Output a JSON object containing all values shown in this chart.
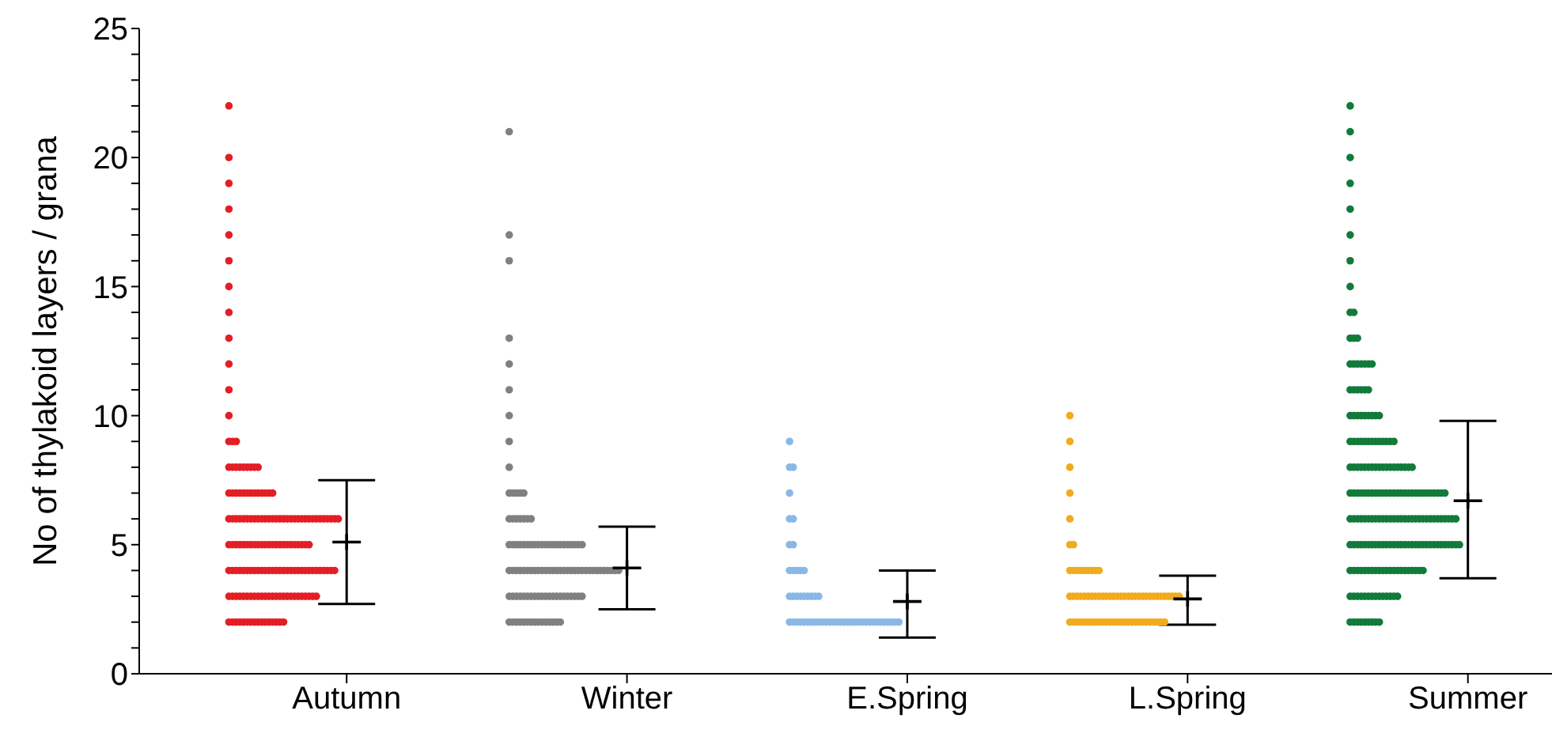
{
  "chart_data": {
    "type": "scatter",
    "ylabel": "No of thylakoid layers / grana",
    "categories": [
      "Autumn",
      "Winter",
      "E.Spring",
      "L.Spring",
      "Summer"
    ],
    "ylim": [
      0,
      25
    ],
    "yticks": [
      0,
      {
        "value": 1,
        "label": null
      },
      {
        "value": 2,
        "label": null
      },
      {
        "value": 3,
        "label": null
      },
      {
        "value": 4,
        "label": null
      },
      5,
      {
        "value": 6,
        "label": null
      },
      {
        "value": 7,
        "label": null
      },
      {
        "value": 8,
        "label": null
      },
      {
        "value": 9,
        "label": null
      },
      10,
      {
        "value": 11,
        "label": null
      },
      {
        "value": 12,
        "label": null
      },
      {
        "value": 13,
        "label": null
      },
      {
        "value": 14,
        "label": null
      },
      15,
      {
        "value": 16,
        "label": null
      },
      {
        "value": 17,
        "label": null
      },
      {
        "value": 18,
        "label": null
      },
      {
        "value": 19,
        "label": null
      },
      20,
      {
        "value": 21,
        "label": null
      },
      {
        "value": 22,
        "label": null
      },
      {
        "value": 23,
        "label": null
      },
      {
        "value": 24,
        "label": null
      },
      25
    ],
    "grid": false,
    "marker": "circle",
    "series": [
      {
        "color": "#e31e24",
        "x": [
          "Autumn",
          "Autumn",
          "Autumn",
          "Autumn",
          "Autumn",
          "Autumn",
          "Autumn",
          "Autumn",
          "Autumn",
          "Autumn",
          "Autumn",
          "Autumn",
          "Autumn",
          "Autumn",
          "Autumn",
          "Autumn",
          "Autumn",
          "Autumn",
          "Autumn",
          "Autumn",
          "Autumn",
          "Autumn",
          "Autumn",
          "Autumn",
          "Autumn",
          "Autumn",
          "Autumn",
          "Autumn",
          "Autumn",
          "Autumn",
          "Autumn",
          "Autumn",
          "Autumn",
          "Autumn",
          "Autumn",
          "Autumn",
          "Autumn",
          "Autumn",
          "Autumn",
          "Autumn",
          "Autumn",
          "Autumn",
          "Autumn",
          "Autumn",
          "Autumn",
          "Autumn",
          "Autumn",
          "Autumn",
          "Autumn",
          "Autumn",
          "Autumn",
          "Autumn",
          "Autumn",
          "Autumn",
          "Autumn",
          "Autumn",
          "Autumn",
          "Autumn",
          "Autumn",
          "Autumn",
          "Autumn",
          "Autumn",
          "Autumn",
          "Autumn",
          "Autumn",
          "Autumn",
          "Autumn",
          "Autumn",
          "Autumn",
          "Autumn",
          "Autumn",
          "Autumn",
          "Autumn",
          "Autumn",
          "Autumn",
          "Autumn",
          "Autumn",
          "Autumn",
          "Autumn",
          "Autumn",
          "Autumn",
          "Autumn",
          "Autumn",
          "Autumn",
          "Autumn",
          "Autumn",
          "Autumn",
          "Autumn",
          "Autumn",
          "Autumn",
          "Autumn",
          "Autumn",
          "Autumn",
          "Autumn",
          "Autumn",
          "Autumn",
          "Autumn",
          "Autumn",
          "Autumn",
          "Autumn",
          "Autumn",
          "Autumn",
          "Autumn",
          "Autumn",
          "Autumn",
          "Autumn",
          "Autumn",
          "Autumn",
          "Autumn",
          "Autumn",
          "Autumn",
          "Autumn",
          "Autumn",
          "Autumn",
          "Autumn",
          "Autumn",
          "Autumn",
          "Autumn",
          "Autumn",
          "Autumn",
          "Autumn",
          "Autumn",
          "Autumn",
          "Autumn",
          "Autumn",
          "Autumn",
          "Autumn",
          "Autumn",
          "Autumn",
          "Autumn",
          "Autumn",
          "Autumn",
          "Autumn",
          "Autumn",
          "Autumn",
          "Autumn",
          "Autumn",
          "Autumn",
          "Autumn",
          "Autumn",
          "Autumn",
          "Autumn",
          "Autumn",
          "Autumn",
          "Autumn",
          "Autumn",
          "Autumn",
          "Autumn",
          "Autumn",
          "Autumn",
          "Autumn",
          "Autumn",
          "Autumn",
          "Autumn",
          "Autumn",
          "Autumn",
          "Autumn",
          "Autumn",
          "Autumn",
          "Autumn",
          "Autumn",
          "Autumn"
        ],
        "values": [
          22,
          20,
          19,
          18,
          17,
          16,
          15,
          14,
          13,
          12,
          11,
          10,
          9,
          9,
          9,
          8,
          8,
          8,
          8,
          8,
          8,
          8,
          8,
          8,
          7,
          7,
          7,
          7,
          7,
          7,
          7,
          7,
          7,
          7,
          7,
          7,
          7,
          6,
          6,
          6,
          6,
          6,
          6,
          6,
          6,
          6,
          6,
          6,
          6,
          6,
          6,
          6,
          6,
          6,
          6,
          6,
          6,
          6,
          6,
          6,
          6,
          6,
          6,
          6,
          6,
          6,
          6,
          6,
          5,
          5,
          5,
          5,
          5,
          5,
          5,
          5,
          5,
          5,
          5,
          5,
          5,
          5,
          5,
          5,
          5,
          5,
          5,
          5,
          5,
          5,
          5,
          4,
          4,
          4,
          4,
          4,
          4,
          4,
          4,
          4,
          4,
          4,
          4,
          4,
          4,
          4,
          4,
          4,
          4,
          4,
          4,
          4,
          4,
          4,
          4,
          4,
          4,
          4,
          4,
          4,
          4,
          3,
          3,
          3,
          3,
          3,
          3,
          3,
          3,
          3,
          3,
          3,
          3,
          3,
          3,
          3,
          3,
          3,
          3,
          3,
          3,
          3,
          3,
          3,
          3,
          3,
          2,
          2,
          2,
          2,
          2,
          2,
          2,
          2,
          2,
          2,
          2,
          2,
          2,
          2,
          2,
          2
        ]
      },
      {
        "color": "#808080",
        "x": [
          "Winter",
          "Winter",
          "Winter",
          "Winter",
          "Winter",
          "Winter",
          "Winter",
          "Winter",
          "Winter",
          "Winter",
          "Winter",
          "Winter",
          "Winter",
          "Winter",
          "Winter",
          "Winter",
          "Winter",
          "Winter",
          "Winter",
          "Winter",
          "Winter",
          "Winter",
          "Winter",
          "Winter",
          "Winter",
          "Winter",
          "Winter",
          "Winter",
          "Winter",
          "Winter",
          "Winter",
          "Winter",
          "Winter",
          "Winter",
          "Winter",
          "Winter",
          "Winter",
          "Winter",
          "Winter",
          "Winter",
          "Winter",
          "Winter",
          "Winter",
          "Winter",
          "Winter",
          "Winter",
          "Winter",
          "Winter",
          "Winter",
          "Winter",
          "Winter",
          "Winter",
          "Winter",
          "Winter",
          "Winter",
          "Winter",
          "Winter",
          "Winter",
          "Winter",
          "Winter",
          "Winter",
          "Winter",
          "Winter",
          "Winter",
          "Winter",
          "Winter",
          "Winter",
          "Winter",
          "Winter",
          "Winter",
          "Winter",
          "Winter",
          "Winter",
          "Winter",
          "Winter",
          "Winter",
          "Winter",
          "Winter",
          "Winter",
          "Winter",
          "Winter",
          "Winter",
          "Winter",
          "Winter",
          "Winter",
          "Winter",
          "Winter",
          "Winter",
          "Winter",
          "Winter",
          "Winter",
          "Winter",
          "Winter",
          "Winter",
          "Winter",
          "Winter",
          "Winter",
          "Winter",
          "Winter",
          "Winter",
          "Winter",
          "Winter",
          "Winter",
          "Winter",
          "Winter",
          "Winter",
          "Winter",
          "Winter",
          "Winter"
        ],
        "values": [
          21,
          17,
          16,
          13,
          12,
          11,
          10,
          9,
          8,
          7,
          7,
          7,
          7,
          7,
          6,
          6,
          6,
          6,
          6,
          6,
          6,
          5,
          5,
          5,
          5,
          5,
          5,
          5,
          5,
          5,
          5,
          5,
          5,
          5,
          5,
          5,
          5,
          5,
          5,
          5,
          5,
          5,
          4,
          4,
          4,
          4,
          4,
          4,
          4,
          4,
          4,
          4,
          4,
          4,
          4,
          4,
          4,
          4,
          4,
          4,
          4,
          4,
          4,
          4,
          4,
          4,
          4,
          4,
          4,
          4,
          4,
          4,
          4,
          3,
          3,
          3,
          3,
          3,
          3,
          3,
          3,
          3,
          3,
          3,
          3,
          3,
          3,
          3,
          3,
          3,
          3,
          3,
          3,
          3,
          2,
          2,
          2,
          2,
          2,
          2,
          2,
          2,
          2,
          2,
          2,
          2,
          2,
          2,
          2
        ]
      },
      {
        "color": "#8ab8e6",
        "x": [
          "E.Spring",
          "E.Spring",
          "E.Spring",
          "E.Spring",
          "E.Spring",
          "E.Spring",
          "E.Spring",
          "E.Spring",
          "E.Spring",
          "E.Spring",
          "E.Spring",
          "E.Spring",
          "E.Spring",
          "E.Spring",
          "E.Spring",
          "E.Spring",
          "E.Spring",
          "E.Spring",
          "E.Spring",
          "E.Spring",
          "E.Spring",
          "E.Spring",
          "E.Spring",
          "E.Spring",
          "E.Spring",
          "E.Spring",
          "E.Spring",
          "E.Spring",
          "E.Spring",
          "E.Spring",
          "E.Spring",
          "E.Spring",
          "E.Spring",
          "E.Spring",
          "E.Spring",
          "E.Spring",
          "E.Spring",
          "E.Spring",
          "E.Spring",
          "E.Spring",
          "E.Spring",
          "E.Spring",
          "E.Spring",
          "E.Spring",
          "E.Spring",
          "E.Spring",
          "E.Spring",
          "E.Spring",
          "E.Spring",
          "E.Spring",
          "E.Spring",
          "E.Spring",
          "E.Spring"
        ],
        "values": [
          9,
          8,
          8,
          7,
          6,
          6,
          5,
          5,
          4,
          4,
          4,
          4,
          4,
          3,
          3,
          3,
          3,
          3,
          3,
          3,
          3,
          3,
          2,
          2,
          2,
          2,
          2,
          2,
          2,
          2,
          2,
          2,
          2,
          2,
          2,
          2,
          2,
          2,
          2,
          2,
          2,
          2,
          2,
          2,
          2,
          2,
          2,
          2,
          2,
          2,
          2,
          2,
          2
        ]
      },
      {
        "color": "#f0ab1e",
        "x": [
          "L.Spring",
          "L.Spring",
          "L.Spring",
          "L.Spring",
          "L.Spring",
          "L.Spring",
          "L.Spring",
          "L.Spring",
          "L.Spring",
          "L.Spring",
          "L.Spring",
          "L.Spring",
          "L.Spring",
          "L.Spring",
          "L.Spring",
          "L.Spring",
          "L.Spring",
          "L.Spring",
          "L.Spring",
          "L.Spring",
          "L.Spring",
          "L.Spring",
          "L.Spring",
          "L.Spring",
          "L.Spring",
          "L.Spring",
          "L.Spring",
          "L.Spring",
          "L.Spring",
          "L.Spring",
          "L.Spring",
          "L.Spring",
          "L.Spring",
          "L.Spring",
          "L.Spring",
          "L.Spring",
          "L.Spring",
          "L.Spring",
          "L.Spring",
          "L.Spring",
          "L.Spring",
          "L.Spring",
          "L.Spring",
          "L.Spring",
          "L.Spring",
          "L.Spring",
          "L.Spring",
          "L.Spring",
          "L.Spring",
          "L.Spring",
          "L.Spring",
          "L.Spring",
          "L.Spring",
          "L.Spring",
          "L.Spring",
          "L.Spring",
          "L.Spring",
          "L.Spring",
          "L.Spring",
          "L.Spring",
          "L.Spring",
          "L.Spring",
          "L.Spring",
          "L.Spring",
          "L.Spring",
          "L.Spring",
          "L.Spring",
          "L.Spring",
          "L.Spring",
          "L.Spring",
          "L.Spring",
          "L.Spring",
          "L.Spring",
          "L.Spring"
        ],
        "values": [
          10,
          9,
          8,
          7,
          6,
          5,
          5,
          4,
          4,
          4,
          4,
          4,
          4,
          4,
          4,
          4,
          3,
          3,
          3,
          3,
          3,
          3,
          3,
          3,
          3,
          3,
          3,
          3,
          3,
          3,
          3,
          3,
          3,
          3,
          3,
          3,
          3,
          3,
          3,
          3,
          3,
          3,
          3,
          3,
          3,
          3,
          3,
          2,
          2,
          2,
          2,
          2,
          2,
          2,
          2,
          2,
          2,
          2,
          2,
          2,
          2,
          2,
          2,
          2,
          2,
          2,
          2,
          2,
          2,
          2,
          2,
          2,
          2,
          2
        ]
      },
      {
        "color": "#127a3a",
        "x": [
          "Summer",
          "Summer",
          "Summer",
          "Summer",
          "Summer",
          "Summer",
          "Summer",
          "Summer",
          "Summer",
          "Summer",
          "Summer",
          "Summer",
          "Summer",
          "Summer",
          "Summer",
          "Summer",
          "Summer",
          "Summer",
          "Summer",
          "Summer",
          "Summer",
          "Summer",
          "Summer",
          "Summer",
          "Summer",
          "Summer",
          "Summer",
          "Summer",
          "Summer",
          "Summer",
          "Summer",
          "Summer",
          "Summer",
          "Summer",
          "Summer",
          "Summer",
          "Summer",
          "Summer",
          "Summer",
          "Summer",
          "Summer",
          "Summer",
          "Summer",
          "Summer",
          "Summer",
          "Summer",
          "Summer",
          "Summer",
          "Summer",
          "Summer",
          "Summer",
          "Summer",
          "Summer",
          "Summer",
          "Summer",
          "Summer",
          "Summer",
          "Summer",
          "Summer",
          "Summer",
          "Summer",
          "Summer",
          "Summer",
          "Summer",
          "Summer",
          "Summer",
          "Summer",
          "Summer",
          "Summer",
          "Summer",
          "Summer",
          "Summer",
          "Summer",
          "Summer",
          "Summer",
          "Summer",
          "Summer",
          "Summer",
          "Summer",
          "Summer",
          "Summer",
          "Summer",
          "Summer",
          "Summer",
          "Summer",
          "Summer",
          "Summer",
          "Summer",
          "Summer",
          "Summer",
          "Summer",
          "Summer",
          "Summer",
          "Summer",
          "Summer",
          "Summer",
          "Summer",
          "Summer",
          "Summer",
          "Summer",
          "Summer",
          "Summer",
          "Summer",
          "Summer",
          "Summer",
          "Summer",
          "Summer",
          "Summer",
          "Summer",
          "Summer",
          "Summer",
          "Summer",
          "Summer",
          "Summer",
          "Summer",
          "Summer",
          "Summer",
          "Summer",
          "Summer",
          "Summer",
          "Summer",
          "Summer",
          "Summer",
          "Summer",
          "Summer",
          "Summer",
          "Summer",
          "Summer",
          "Summer",
          "Summer",
          "Summer",
          "Summer",
          "Summer",
          "Summer",
          "Summer",
          "Summer",
          "Summer",
          "Summer",
          "Summer",
          "Summer",
          "Summer",
          "Summer",
          "Summer",
          "Summer",
          "Summer",
          "Summer",
          "Summer",
          "Summer",
          "Summer",
          "Summer",
          "Summer",
          "Summer",
          "Summer",
          "Summer",
          "Summer",
          "Summer",
          "Summer",
          "Summer",
          "Summer",
          "Summer",
          "Summer",
          "Summer",
          "Summer",
          "Summer",
          "Summer",
          "Summer",
          "Summer",
          "Summer",
          "Summer",
          "Summer",
          "Summer",
          "Summer",
          "Summer",
          "Summer",
          "Summer",
          "Summer",
          "Summer",
          "Summer",
          "Summer",
          "Summer",
          "Summer",
          "Summer",
          "Summer",
          "Summer",
          "Summer",
          "Summer",
          "Summer",
          "Summer",
          "Summer",
          "Summer",
          "Summer",
          "Summer",
          "Summer",
          "Summer",
          "Summer",
          "Summer",
          "Summer",
          "Summer"
        ],
        "values": [
          22,
          21,
          20,
          19,
          18,
          17,
          16,
          15,
          14,
          14,
          13,
          13,
          13,
          12,
          12,
          12,
          12,
          12,
          12,
          12,
          11,
          11,
          11,
          11,
          11,
          11,
          10,
          10,
          10,
          10,
          10,
          10,
          10,
          10,
          10,
          9,
          9,
          9,
          9,
          9,
          9,
          9,
          9,
          9,
          9,
          9,
          9,
          9,
          8,
          8,
          8,
          8,
          8,
          8,
          8,
          8,
          8,
          8,
          8,
          8,
          8,
          8,
          8,
          8,
          8,
          8,
          7,
          7,
          7,
          7,
          7,
          7,
          7,
          7,
          7,
          7,
          7,
          7,
          7,
          7,
          7,
          7,
          7,
          7,
          7,
          7,
          7,
          7,
          7,
          7,
          7,
          7,
          7,
          6,
          6,
          6,
          6,
          6,
          6,
          6,
          6,
          6,
          6,
          6,
          6,
          6,
          6,
          6,
          6,
          6,
          6,
          6,
          6,
          6,
          6,
          6,
          6,
          6,
          6,
          6,
          6,
          6,
          6,
          5,
          5,
          5,
          5,
          5,
          5,
          5,
          5,
          5,
          5,
          5,
          5,
          5,
          5,
          5,
          5,
          5,
          5,
          5,
          5,
          5,
          5,
          5,
          5,
          5,
          5,
          5,
          5,
          5,
          5,
          5,
          4,
          4,
          4,
          4,
          4,
          4,
          4,
          4,
          4,
          4,
          4,
          4,
          4,
          4,
          4,
          4,
          4,
          4,
          4,
          4,
          4,
          3,
          3,
          3,
          3,
          3,
          3,
          3,
          3,
          3,
          3,
          3,
          3,
          3,
          3,
          2,
          2,
          2,
          2,
          2,
          2,
          2,
          2,
          2
        ]
      },
      {
        "color": "#000000",
        "marker": "cross",
        "x": [
          "Autumn",
          "Winter",
          "E.Spring",
          "L.Spring",
          "Summer"
        ],
        "values": [
          5.1,
          4.1,
          2.8,
          2.9,
          6.7
        ],
        "errors": [
          [
            2.7,
            7.5
          ],
          [
            2.5,
            5.7
          ],
          [
            1.4,
            4.0
          ],
          [
            1.9,
            3.8
          ],
          [
            3.7,
            9.8
          ]
        ]
      }
    ]
  }
}
